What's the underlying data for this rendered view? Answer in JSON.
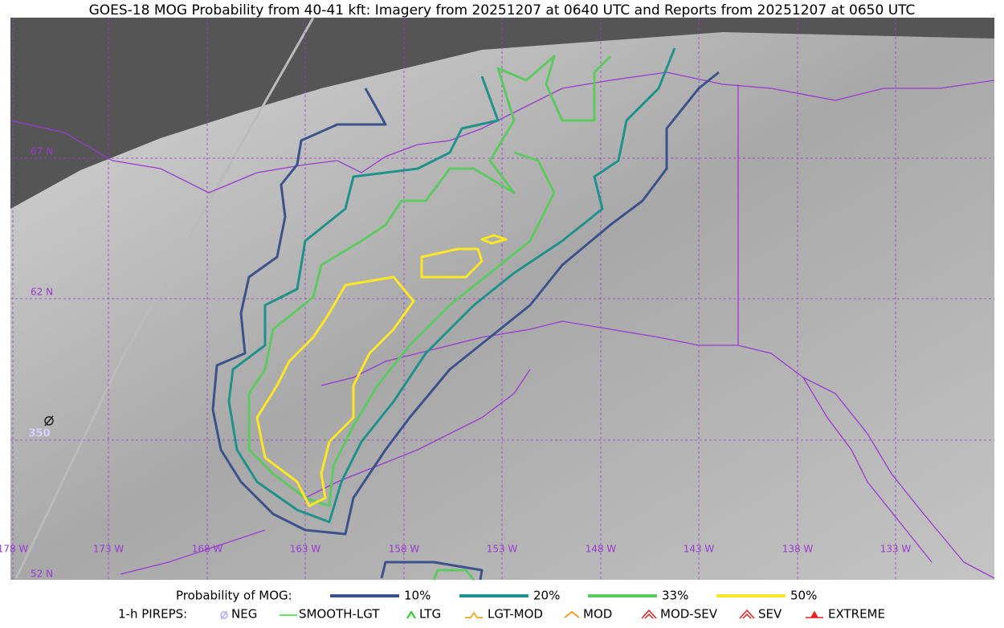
{
  "header": {
    "title": "GOES-18 MOG Probability from 40-41 kft: Imagery from 20251207 at 0640 UTC and Reports from 20251207 at 0650 UTC"
  },
  "map": {
    "lat_labels": [
      "67 N",
      "62 N",
      "52 N"
    ],
    "lon_labels": [
      "178 W",
      "173 W",
      "168 W",
      "163 W",
      "158 W",
      "153 W",
      "148 W",
      "143 W",
      "138 W",
      "133 W"
    ],
    "pirep_label": "350"
  },
  "legend": {
    "probability": {
      "title": "Probability of MOG:",
      "items": [
        {
          "label": "10%",
          "color": "#3b528b"
        },
        {
          "label": "20%",
          "color": "#21918c"
        },
        {
          "label": "33%",
          "color": "#5ec962"
        },
        {
          "label": "50%",
          "color": "#fde725"
        }
      ]
    },
    "pireps": {
      "title": "1-h PIREPS:",
      "items": [
        {
          "label": "NEG",
          "color": "#b4a8ff"
        },
        {
          "label": "SMOOTH-LGT",
          "color": "#33dd33"
        },
        {
          "label": "LTG",
          "color": "#22cc22"
        },
        {
          "label": "LGT-MOD",
          "color": "#f0b030"
        },
        {
          "label": "MOD",
          "color": "#f0a020"
        },
        {
          "label": "MOD-SEV",
          "color": "#e82020"
        },
        {
          "label": "SEV",
          "color": "#e82020"
        },
        {
          "label": "EXTREME",
          "color": "#e82020"
        }
      ]
    }
  }
}
